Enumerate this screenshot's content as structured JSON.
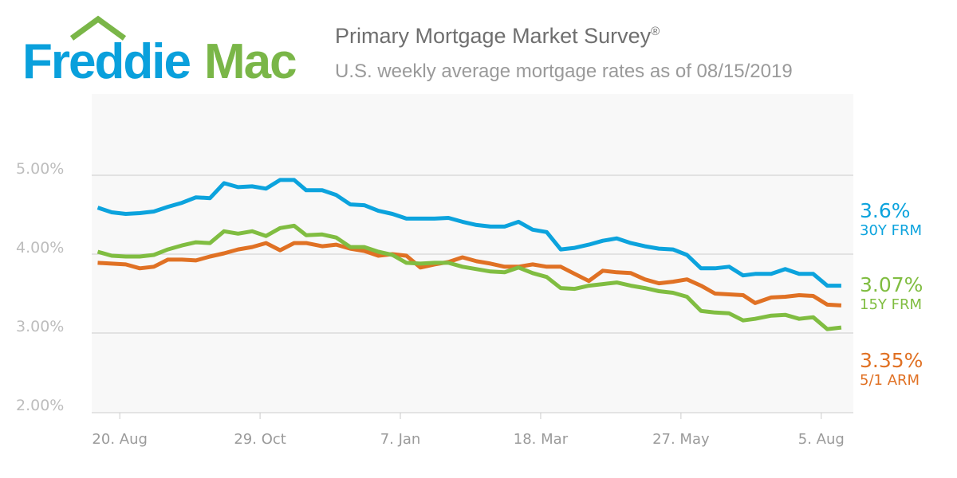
{
  "logo": {
    "text_left": "Freddie",
    "text_right": "Mac",
    "colors": {
      "blue": "#0aa0dc",
      "green": "#7ab648"
    }
  },
  "header": {
    "title": "Primary Mortgage Market Survey",
    "title_mark": "®",
    "subtitle": "U.S. weekly average mortgage rates as of 08/15/2019"
  },
  "chart_data": {
    "type": "line",
    "title": "Primary Mortgage Market Survey",
    "ylim": [
      2,
      6
    ],
    "y_ticks": [
      {
        "v": 2,
        "label": "2.00%"
      },
      {
        "v": 3,
        "label": "3.00%"
      },
      {
        "v": 4,
        "label": "4.00%"
      },
      {
        "v": 5,
        "label": "5.00%"
      }
    ],
    "x_ticks": [
      {
        "date": "2018-08-20",
        "label": "20. Aug"
      },
      {
        "date": "2018-10-29",
        "label": "29. Oct"
      },
      {
        "date": "2019-01-07",
        "label": "7. Jan"
      },
      {
        "date": "2019-03-18",
        "label": "18. Mar"
      },
      {
        "date": "2019-05-27",
        "label": "27. May"
      },
      {
        "date": "2019-08-05",
        "label": "5. Aug"
      }
    ],
    "xlim": [
      "2018-08-06",
      "2019-08-21"
    ],
    "grid": true,
    "x": [
      "2018-08-09",
      "2018-08-16",
      "2018-08-23",
      "2018-08-30",
      "2018-09-06",
      "2018-09-13",
      "2018-09-20",
      "2018-09-27",
      "2018-10-04",
      "2018-10-11",
      "2018-10-18",
      "2018-10-25",
      "2018-11-01",
      "2018-11-08",
      "2018-11-15",
      "2018-11-21",
      "2018-11-29",
      "2018-12-06",
      "2018-12-13",
      "2018-12-20",
      "2018-12-27",
      "2019-01-03",
      "2019-01-10",
      "2019-01-17",
      "2019-01-24",
      "2019-01-31",
      "2019-02-07",
      "2019-02-14",
      "2019-02-21",
      "2019-02-28",
      "2019-03-07",
      "2019-03-14",
      "2019-03-21",
      "2019-03-28",
      "2019-04-04",
      "2019-04-11",
      "2019-04-18",
      "2019-04-25",
      "2019-05-02",
      "2019-05-09",
      "2019-05-16",
      "2019-05-23",
      "2019-05-30",
      "2019-06-06",
      "2019-06-13",
      "2019-06-20",
      "2019-06-27",
      "2019-07-03",
      "2019-07-11",
      "2019-07-18",
      "2019-07-25",
      "2019-08-01",
      "2019-08-08",
      "2019-08-15"
    ],
    "series": [
      {
        "name": "30Y FRM",
        "latest": "3.6%",
        "color": "#0ca3dd",
        "values": [
          4.59,
          4.53,
          4.51,
          4.52,
          4.54,
          4.6,
          4.65,
          4.72,
          4.71,
          4.9,
          4.85,
          4.86,
          4.83,
          4.94,
          4.94,
          4.81,
          4.81,
          4.75,
          4.63,
          4.62,
          4.55,
          4.51,
          4.45,
          4.45,
          4.45,
          4.46,
          4.41,
          4.37,
          4.35,
          4.35,
          4.41,
          4.31,
          4.28,
          4.06,
          4.08,
          4.12,
          4.17,
          4.2,
          4.14,
          4.1,
          4.07,
          4.06,
          3.99,
          3.82,
          3.82,
          3.84,
          3.73,
          3.75,
          3.75,
          3.81,
          3.75,
          3.75,
          3.6,
          3.6
        ]
      },
      {
        "name": "15Y FRM",
        "latest": "3.07%",
        "color": "#80bd41",
        "values": [
          4.03,
          3.98,
          3.97,
          3.97,
          3.99,
          4.06,
          4.11,
          4.15,
          4.14,
          4.29,
          4.26,
          4.29,
          4.23,
          4.33,
          4.36,
          4.24,
          4.25,
          4.21,
          4.09,
          4.09,
          4.03,
          3.99,
          3.89,
          3.88,
          3.89,
          3.89,
          3.84,
          3.81,
          3.78,
          3.77,
          3.83,
          3.76,
          3.71,
          3.57,
          3.56,
          3.6,
          3.62,
          3.64,
          3.6,
          3.57,
          3.53,
          3.51,
          3.46,
          3.28,
          3.26,
          3.25,
          3.16,
          3.18,
          3.22,
          3.23,
          3.18,
          3.2,
          3.05,
          3.07
        ]
      },
      {
        "name": "5/1 ARM",
        "latest": "3.35%",
        "color": "#e07124",
        "values": [
          3.89,
          3.88,
          3.87,
          3.82,
          3.84,
          3.93,
          3.93,
          3.92,
          3.97,
          4.01,
          4.06,
          4.09,
          4.14,
          4.05,
          4.14,
          4.14,
          4.1,
          4.12,
          4.07,
          4.04,
          3.98,
          4.0,
          3.98,
          3.83,
          3.87,
          3.9,
          3.96,
          3.91,
          3.88,
          3.84,
          3.84,
          3.87,
          3.84,
          3.84,
          3.75,
          3.66,
          3.79,
          3.77,
          3.76,
          3.68,
          3.63,
          3.65,
          3.68,
          3.6,
          3.5,
          3.49,
          3.48,
          3.38,
          3.45,
          3.46,
          3.48,
          3.47,
          3.36,
          3.35
        ]
      }
    ]
  }
}
